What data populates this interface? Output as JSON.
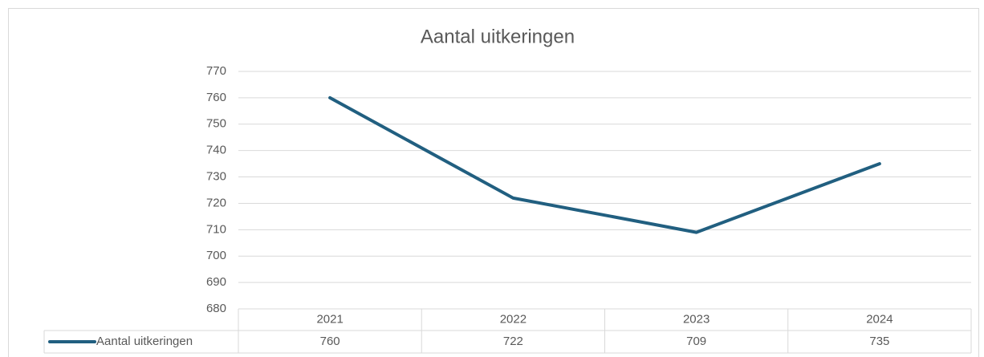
{
  "chart_data": {
    "type": "line",
    "title": "Aantal uitkeringen",
    "categories": [
      "2021",
      "2022",
      "2023",
      "2024"
    ],
    "series": [
      {
        "name": "Aantal uitkeringen",
        "color": "#215f80",
        "values": [
          760,
          722,
          709,
          735
        ]
      }
    ],
    "ylim": [
      680,
      770
    ],
    "yticks": [
      680,
      690,
      700,
      710,
      720,
      730,
      740,
      750,
      760,
      770
    ],
    "grid": true,
    "data_table": true
  }
}
